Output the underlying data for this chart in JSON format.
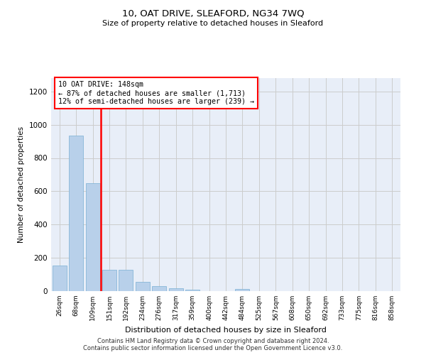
{
  "title": "10, OAT DRIVE, SLEAFORD, NG34 7WQ",
  "subtitle": "Size of property relative to detached houses in Sleaford",
  "xlabel": "Distribution of detached houses by size in Sleaford",
  "ylabel": "Number of detached properties",
  "bar_color": "#b8d0ea",
  "bar_edge_color": "#7aafd4",
  "categories": [
    "26sqm",
    "68sqm",
    "109sqm",
    "151sqm",
    "192sqm",
    "234sqm",
    "276sqm",
    "317sqm",
    "359sqm",
    "400sqm",
    "442sqm",
    "484sqm",
    "525sqm",
    "567sqm",
    "608sqm",
    "650sqm",
    "692sqm",
    "733sqm",
    "775sqm",
    "816sqm",
    "858sqm"
  ],
  "values": [
    155,
    935,
    650,
    130,
    130,
    57,
    30,
    15,
    10,
    0,
    0,
    13,
    0,
    0,
    0,
    0,
    0,
    0,
    0,
    0,
    0
  ],
  "ylim": [
    0,
    1280
  ],
  "yticks": [
    0,
    200,
    400,
    600,
    800,
    1000,
    1200
  ],
  "vline_x": 2.5,
  "annotation_text": "10 OAT DRIVE: 148sqm\n← 87% of detached houses are smaller (1,713)\n12% of semi-detached houses are larger (239) →",
  "annotation_box_color": "white",
  "annotation_box_edgecolor": "red",
  "vline_color": "red",
  "grid_color": "#cccccc",
  "background_color": "#e8eef8",
  "footer1": "Contains HM Land Registry data © Crown copyright and database right 2024.",
  "footer2": "Contains public sector information licensed under the Open Government Licence v3.0."
}
